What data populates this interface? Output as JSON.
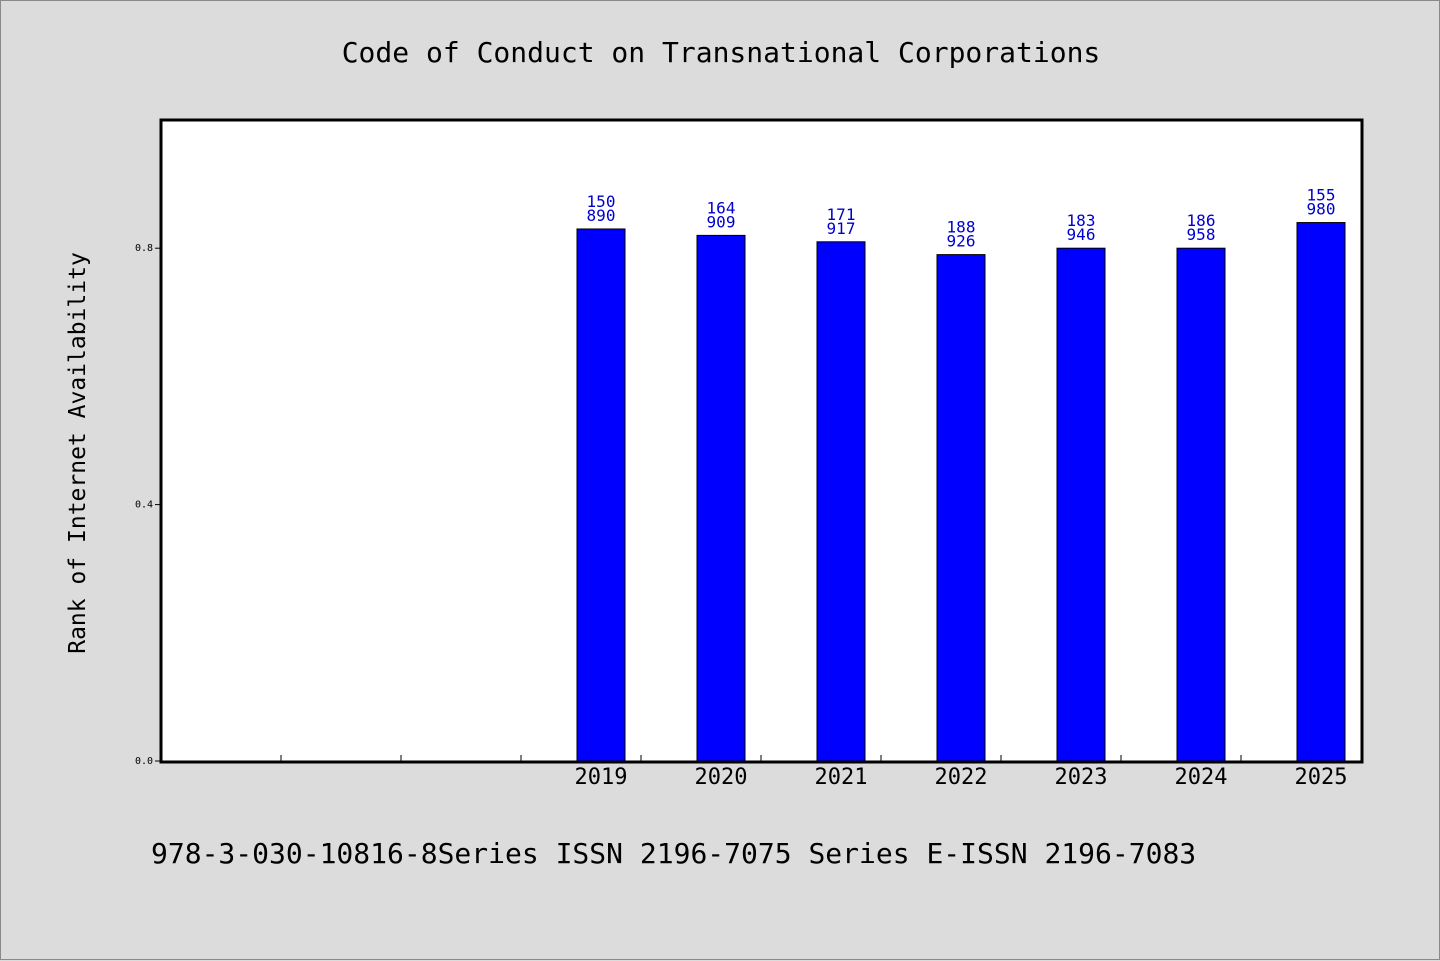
{
  "colors": {
    "bar": "#0000ff",
    "bar_stroke": "#000000",
    "data_label": "#0000cd",
    "background": "#dcdcdc",
    "plot_bg": "#ffffff"
  },
  "footer": "978-3-030-10816-8Series ISSN 2196-7075 Series E-ISSN 2196-7083",
  "chart_data": {
    "type": "bar",
    "title": "Code of Conduct on Transnational Corporations",
    "xlabel": "",
    "ylabel": "Rank of Internet Availability",
    "categories": [
      "",
      "",
      "",
      "2019",
      "2020",
      "2021",
      "2022",
      "2023",
      "2024",
      "2025"
    ],
    "values": [
      null,
      null,
      null,
      0.83,
      0.82,
      0.81,
      0.79,
      0.8,
      0.8,
      0.84
    ],
    "data_labels": [
      null,
      null,
      null,
      "150\n890",
      "164\n909",
      "171\n917",
      "188\n926",
      "183\n946",
      "186\n958",
      "155\n980"
    ],
    "yticks": [
      "0.0",
      "0.4",
      "0.8"
    ],
    "ytick_values": [
      0,
      0.4,
      0.8
    ],
    "ylim": [
      0,
      1.0
    ],
    "grid": false,
    "legend": "none"
  }
}
